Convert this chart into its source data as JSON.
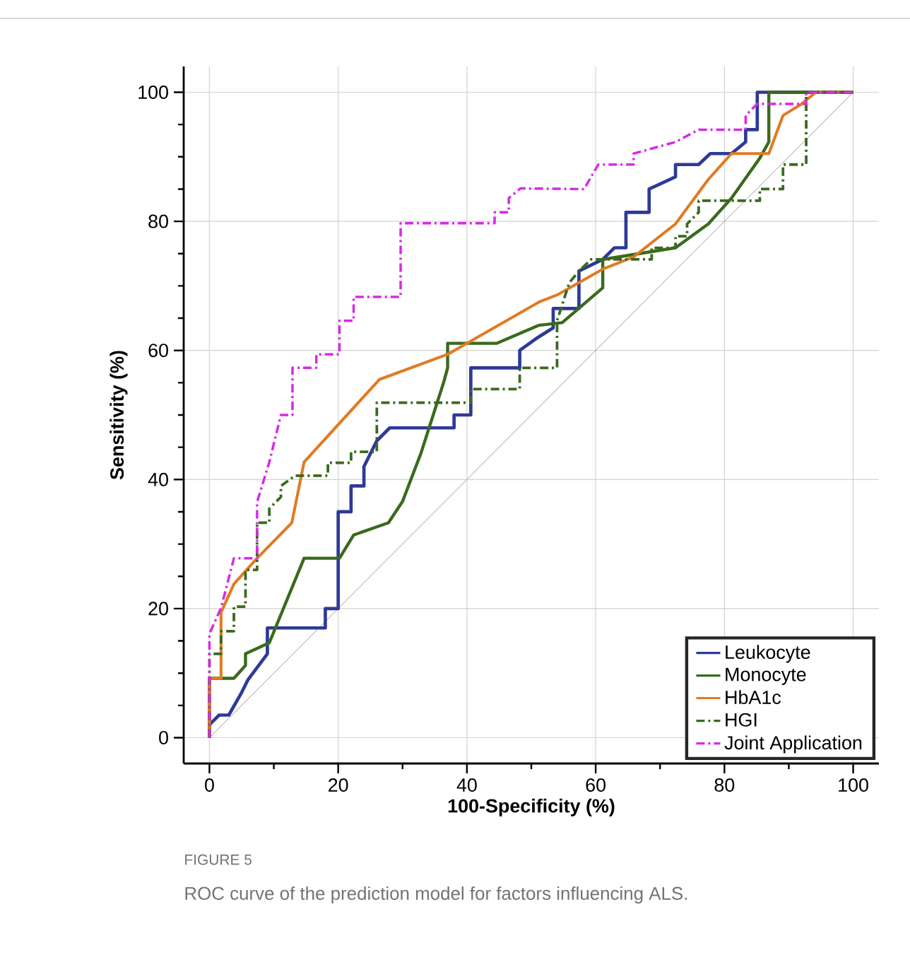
{
  "chart_data": {
    "type": "line",
    "xlabel": "100-Specificity (%)",
    "ylabel": "Sensitivity (%)",
    "xlim": [
      -4,
      104
    ],
    "ylim": [
      -4,
      104
    ],
    "xticks": [
      0,
      20,
      40,
      60,
      80,
      100
    ],
    "yticks": [
      0,
      20,
      40,
      60,
      80,
      100
    ],
    "grid": true,
    "legend": "bottom right",
    "annotations": [
      "FIGURE 5",
      "ROC curve of the prediction model for factors influencing ALS."
    ],
    "series": [
      {
        "type": "line",
        "color": "#a09a9a",
        "line_style": "solid",
        "x": [
          0,
          100
        ],
        "values": [
          0,
          100
        ]
      },
      {
        "name": "Leukocyte",
        "color": "#2e3a97",
        "line_style": "solid",
        "x": [
          0,
          0,
          1.5,
          3,
          5,
          6,
          9,
          9,
          18,
          18,
          20,
          20,
          22,
          22,
          24,
          24,
          26,
          28,
          38,
          38,
          40.6,
          40.6,
          48.2,
          48.2,
          51,
          53.4,
          53.4,
          57.4,
          57.4,
          61.1,
          62.9,
          64.7,
          64.7,
          68.3,
          68.3,
          72.4,
          72.4,
          76,
          77.8,
          81.1,
          83.3,
          83.3,
          85.1,
          85.1,
          100
        ],
        "values": [
          0,
          2,
          3.5,
          3.5,
          7,
          9,
          13,
          17,
          17,
          20,
          20,
          35,
          35,
          39,
          39,
          42,
          46,
          48,
          48,
          50,
          50,
          57.3,
          57.3,
          60,
          62,
          63.5,
          66.5,
          66.5,
          72.3,
          74.1,
          75.9,
          75.9,
          81.4,
          81.4,
          85,
          86.9,
          88.8,
          88.8,
          90.5,
          90.5,
          92.3,
          94.2,
          94.2,
          100,
          100
        ]
      },
      {
        "name": "Monocyte",
        "color": "#3a6a1e",
        "line_style": "solid",
        "x": [
          0,
          0,
          3.8,
          5.6,
          5.6,
          9.3,
          14.7,
          20.2,
          22.4,
          27.8,
          30,
          32.9,
          36.4,
          37,
          37,
          44.6,
          51.2,
          54.8,
          61.1,
          61.1,
          72.4,
          77.5,
          81.1,
          85.5,
          86.9,
          86.9,
          100
        ],
        "values": [
          0,
          9.2,
          9.2,
          11.2,
          13,
          14.7,
          27.8,
          27.8,
          31.4,
          33.3,
          36.6,
          44.2,
          55.1,
          57.3,
          61.1,
          61.1,
          63.9,
          64.3,
          69.7,
          74.1,
          75.9,
          79.6,
          83.6,
          89.8,
          92.3,
          100,
          100
        ]
      },
      {
        "name": "HbA1c",
        "color": "#e07b24",
        "line_style": "solid",
        "x": [
          0,
          0,
          1.8,
          1.8,
          3.8,
          7.4,
          12.8,
          14.7,
          26.4,
          37,
          51.2,
          54,
          61.1,
          65.9,
          72.4,
          77.5,
          81.1,
          86.9,
          89.1,
          92,
          94.2,
          100
        ],
        "values": [
          0,
          9.2,
          9.2,
          19.4,
          23.8,
          27.8,
          33.3,
          42.7,
          55.5,
          59.4,
          67.5,
          68.6,
          72.6,
          74.5,
          79.6,
          86.5,
          90.5,
          90.5,
          96.4,
          98.2,
          100,
          100
        ]
      },
      {
        "name": "HGI",
        "color": "#3a6a1e",
        "line_style": "dashdotted",
        "x": [
          0,
          0,
          1.8,
          1.8,
          3.8,
          3.8,
          5.6,
          5.6,
          7.4,
          7.4,
          9.3,
          9.3,
          11.1,
          11.1,
          13.3,
          18.4,
          18.4,
          22,
          22,
          26,
          26,
          40.6,
          40.6,
          48.2,
          48.2,
          54,
          54,
          55.9,
          57.4,
          59.3,
          68.7,
          68.7,
          72.4,
          72.4,
          74.2,
          74.2,
          76,
          76,
          85.5,
          85.5,
          89.1,
          89.1,
          92.7,
          92.7,
          100
        ],
        "values": [
          0,
          13,
          13,
          16.5,
          16.5,
          20.3,
          20.3,
          26,
          26,
          33.3,
          33.3,
          35.5,
          37.3,
          39,
          40.6,
          40.6,
          42.6,
          42.6,
          44.3,
          44.3,
          51.9,
          51.9,
          54,
          54,
          57.3,
          57.3,
          64.6,
          70.5,
          72.3,
          74.1,
          74.1,
          75.9,
          75.9,
          77.7,
          77.7,
          79.6,
          81.4,
          83.2,
          83.2,
          85,
          85,
          88.8,
          88.8,
          100,
          100
        ]
      },
      {
        "name": "Joint Application",
        "color": "#d829e8",
        "line_style": "dashdotted",
        "x": [
          0,
          0,
          1.8,
          3.8,
          7.4,
          7.4,
          9.3,
          11.1,
          12.9,
          12.9,
          16.6,
          16.6,
          20.2,
          20.2,
          22.4,
          22.4,
          29.7,
          29.7,
          44.3,
          44.3,
          46.5,
          46.5,
          48.3,
          58.2,
          59.3,
          60.4,
          65.9,
          65.9,
          72.4,
          76,
          83.3,
          83.3,
          85.1,
          92.7,
          92.7,
          100
        ],
        "values": [
          0,
          16.1,
          20.1,
          27.8,
          27.8,
          36.5,
          42.7,
          50,
          50,
          57.3,
          57.3,
          59.4,
          59.4,
          64.6,
          64.6,
          68.3,
          68.3,
          79.7,
          79.7,
          81.4,
          81.4,
          83.6,
          85.1,
          85,
          86.9,
          88.8,
          88.8,
          90.5,
          92.3,
          94.2,
          94.2,
          96.4,
          98.2,
          98.2,
          100,
          100
        ]
      }
    ]
  }
}
